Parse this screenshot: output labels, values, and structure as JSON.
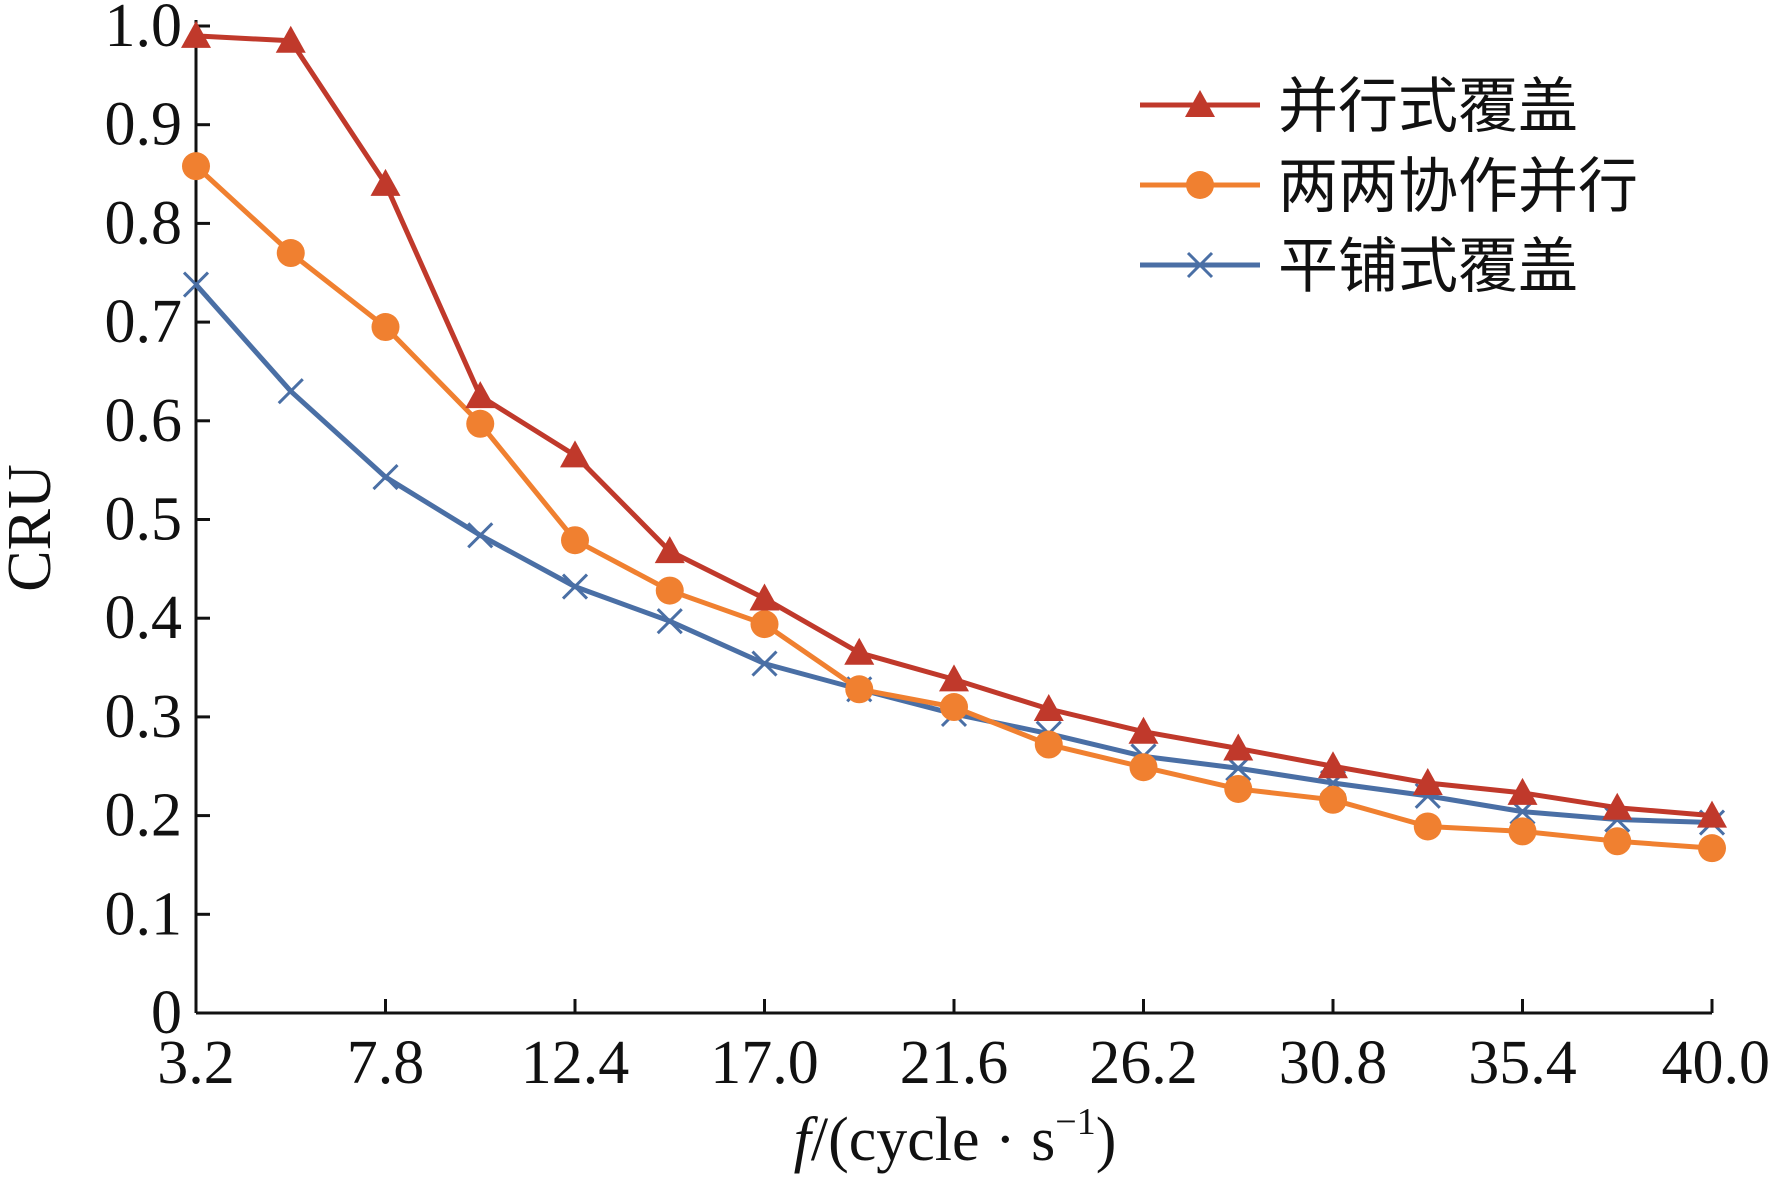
{
  "chart_data": {
    "type": "line",
    "xlabel": "f/(cycle · s⁻¹)",
    "xlabel_italic_part": "f",
    "xlabel_rest": "/(cycle · s",
    "xlabel_sup": "−1",
    "xlabel_close": ")",
    "ylabel": "CRU",
    "xlim": [
      3.2,
      40.0
    ],
    "ylim": [
      0,
      1.0
    ],
    "x_ticks": [
      "3.2",
      "7.8",
      "12.4",
      "17.0",
      "21.6",
      "26.2",
      "30.8",
      "35.4",
      "40.0"
    ],
    "y_ticks": [
      "0",
      "0.1",
      "0.2",
      "0.3",
      "0.4",
      "0.5",
      "0.6",
      "0.7",
      "0.8",
      "0.9",
      "1.0"
    ],
    "legend_position": "top-right",
    "grid": false,
    "x": [
      3.2,
      5.5,
      7.8,
      10.1,
      12.4,
      14.7,
      17.0,
      19.3,
      21.6,
      23.9,
      26.2,
      28.5,
      30.8,
      33.1,
      35.4,
      37.7,
      40.0
    ],
    "series": [
      {
        "name": "并行式覆盖",
        "color": "#c0392b",
        "marker": "triangle",
        "values": [
          0.99,
          0.985,
          0.84,
          0.625,
          0.565,
          0.468,
          0.42,
          0.365,
          0.338,
          0.308,
          0.285,
          0.268,
          0.25,
          0.233,
          0.223,
          0.208,
          0.2
        ]
      },
      {
        "name": "两两协作并行",
        "color": "#f08030",
        "marker": "circle",
        "values": [
          0.858,
          0.77,
          0.695,
          0.597,
          0.479,
          0.428,
          0.394,
          0.328,
          0.31,
          0.272,
          0.249,
          0.227,
          0.216,
          0.189,
          0.184,
          0.174,
          0.167
        ]
      },
      {
        "name": "平铺式覆盖",
        "color": "#4a6fa5",
        "marker": "x",
        "values": [
          0.738,
          0.63,
          0.543,
          0.484,
          0.432,
          0.397,
          0.354,
          0.328,
          0.303,
          0.283,
          0.26,
          0.248,
          0.233,
          0.22,
          0.204,
          0.196,
          0.193
        ]
      }
    ]
  }
}
